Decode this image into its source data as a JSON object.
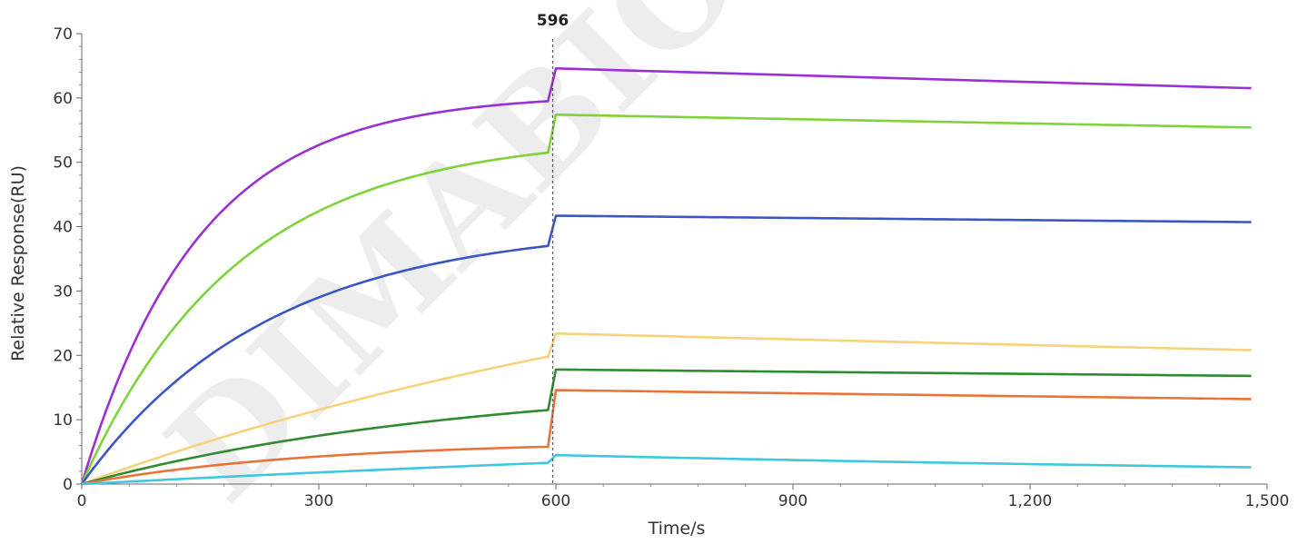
{
  "chart_data": {
    "type": "line",
    "title": "",
    "xlabel": "Time/s",
    "ylabel": "Relative Response(RU)",
    "xlim": [
      0,
      1500
    ],
    "ylim": [
      0,
      70
    ],
    "x_ticks": [
      {
        "value": 0,
        "label": "0"
      },
      {
        "value": 300,
        "label": "300"
      },
      {
        "value": 600,
        "label": "600"
      },
      {
        "value": 900,
        "label": "900"
      },
      {
        "value": 1200,
        "label": "1,200"
      },
      {
        "value": 1500,
        "label": "1,500"
      }
    ],
    "y_ticks": [
      {
        "value": 0,
        "label": "0"
      },
      {
        "value": 10,
        "label": "10"
      },
      {
        "value": 20,
        "label": "20"
      },
      {
        "value": 30,
        "label": "30"
      },
      {
        "value": 40,
        "label": "40"
      },
      {
        "value": 50,
        "label": "50"
      },
      {
        "value": 60,
        "label": "60"
      },
      {
        "value": 70,
        "label": "70"
      }
    ],
    "grid": false,
    "legend": "none",
    "marker": {
      "x": 596,
      "label": "596"
    },
    "watermark": "DIMABIO CON",
    "series": [
      {
        "color": "#9b2fd6",
        "assoc_end": 59.5,
        "assoc_kfactor": 4.0,
        "peak": 64.6,
        "end": 61.5
      },
      {
        "color": "#7fd33a",
        "assoc_end": 51.5,
        "assoc_kfactor": 3.0,
        "peak": 57.4,
        "end": 55.4
      },
      {
        "color": "#3a56c4",
        "assoc_end": 37.0,
        "assoc_kfactor": 2.5,
        "peak": 41.7,
        "end": 40.7
      },
      {
        "color": "#f7d27a",
        "assoc_end": 19.8,
        "assoc_kfactor": 0.6,
        "peak": 23.4,
        "end": 20.8
      },
      {
        "color": "#2e8b2e",
        "assoc_end": 11.5,
        "assoc_kfactor": 1.2,
        "peak": 17.8,
        "end": 16.8
      },
      {
        "color": "#e8743b",
        "assoc_end": 5.8,
        "assoc_kfactor": 2.0,
        "peak": 14.6,
        "end": 13.2
      },
      {
        "color": "#3ec8e0",
        "assoc_end": 3.3,
        "assoc_kfactor": 0.3,
        "peak": 4.5,
        "end": 2.6
      }
    ]
  }
}
